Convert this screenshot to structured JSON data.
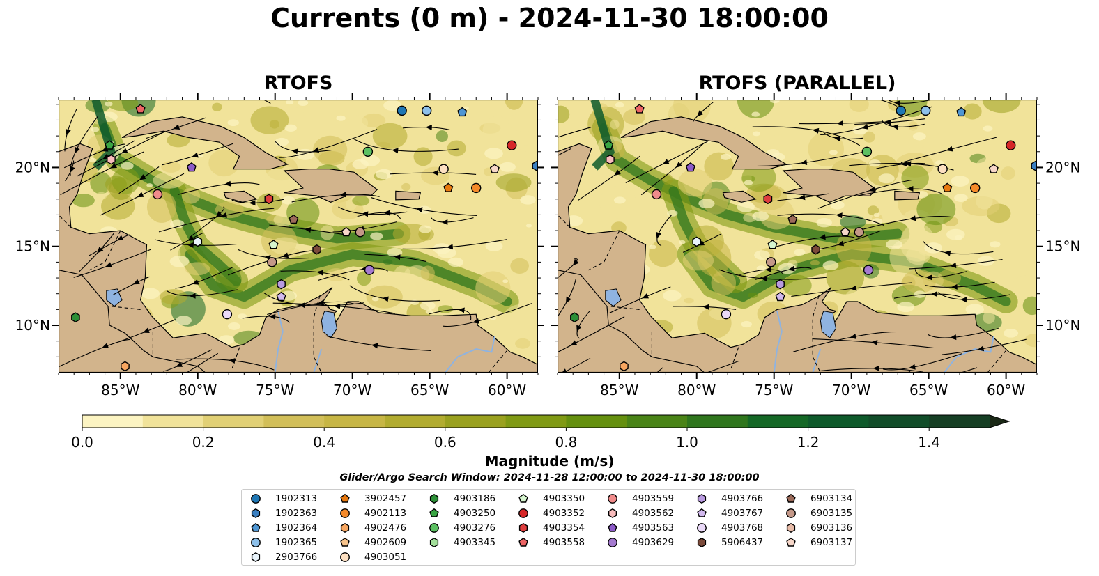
{
  "title": "Currents (0 m) - 2024-11-30 18:00:00",
  "panels": [
    {
      "title": "RTOFS"
    },
    {
      "title": "RTOFS (PARALLEL)"
    }
  ],
  "map": {
    "lon_range": [
      -89.0,
      -58.0
    ],
    "lat_range": [
      7.0,
      24.3
    ],
    "x_ticks": [
      "85°W",
      "80°W",
      "75°W",
      "70°W",
      "65°W",
      "60°W"
    ],
    "x_tick_values": [
      -85,
      -80,
      -75,
      -70,
      -65,
      -60
    ],
    "y_ticks": [
      "20°N",
      "15°N",
      "10°N"
    ],
    "y_tick_values": [
      20,
      15,
      10
    ],
    "land_color": "#d2b48c",
    "water_color": "#8fb3e0"
  },
  "colorbar": {
    "label": "Magnitude (m/s)",
    "ticks": [
      "0.0",
      "0.2",
      "0.4",
      "0.6",
      "0.8",
      "1.0",
      "1.2",
      "1.4"
    ],
    "tick_values": [
      0.0,
      0.2,
      0.4,
      0.6,
      0.8,
      1.0,
      1.2,
      1.4
    ],
    "range": [
      0.0,
      1.5
    ],
    "extend": "max",
    "colors": [
      "#fcf4c2",
      "#f1e39a",
      "#e1d075",
      "#d2bf59",
      "#c7b645",
      "#b2ac30",
      "#9aa11f",
      "#809a14",
      "#65900f",
      "#4a8417",
      "#2f761d",
      "#146826",
      "#0e5a2b",
      "#114d29",
      "#163f24",
      "#18321d",
      "#1a2816"
    ]
  },
  "search_window": "Glider/Argo Search Window: 2024-11-28 12:00:00 to 2024-11-30 18:00:00",
  "legend": [
    {
      "id": "1902313",
      "marker": "circle",
      "color": "#1f77b4"
    },
    {
      "id": "1902363",
      "marker": "hexagon",
      "color": "#3a7fc1"
    },
    {
      "id": "1902364",
      "marker": "pentagon",
      "color": "#4f96d3"
    },
    {
      "id": "1902365",
      "marker": "circle",
      "color": "#8dc0ea"
    },
    {
      "id": "2903766",
      "marker": "hexagon",
      "color": "#e8f3fb"
    },
    {
      "id": "3902457",
      "marker": "pentagon",
      "color": "#e8790f"
    },
    {
      "id": "4902113",
      "marker": "circle",
      "color": "#f58a2a"
    },
    {
      "id": "4902476",
      "marker": "hexagon",
      "color": "#f7a660"
    },
    {
      "id": "4902609",
      "marker": "pentagon",
      "color": "#f8c48c"
    },
    {
      "id": "4903051",
      "marker": "circle",
      "color": "#fde0c2"
    },
    {
      "id": "4903186",
      "marker": "hexagon",
      "color": "#2c8f37"
    },
    {
      "id": "4903250",
      "marker": "pentagon",
      "color": "#3aa543"
    },
    {
      "id": "4903276",
      "marker": "circle",
      "color": "#5cc062"
    },
    {
      "id": "4903345",
      "marker": "hexagon",
      "color": "#a3df9b"
    },
    {
      "id": "4903350",
      "marker": "pentagon",
      "color": "#d6f5cf"
    },
    {
      "id": "4903352",
      "marker": "circle",
      "color": "#d62728"
    },
    {
      "id": "4903354",
      "marker": "hexagon",
      "color": "#df3e3e"
    },
    {
      "id": "4903558",
      "marker": "pentagon",
      "color": "#ec6464"
    },
    {
      "id": "4903559",
      "marker": "circle",
      "color": "#f08b8b"
    },
    {
      "id": "4903562",
      "marker": "hexagon",
      "color": "#f8bcbc"
    },
    {
      "id": "4903563",
      "marker": "pentagon",
      "color": "#8c5ac8"
    },
    {
      "id": "4903629",
      "marker": "circle",
      "color": "#a57ad0"
    },
    {
      "id": "4903766",
      "marker": "hexagon",
      "color": "#b99be0"
    },
    {
      "id": "4903767",
      "marker": "pentagon",
      "color": "#d2b9ee"
    },
    {
      "id": "4903768",
      "marker": "circle",
      "color": "#ead9f8"
    },
    {
      "id": "5906437",
      "marker": "hexagon",
      "color": "#7b4a3a"
    },
    {
      "id": "6903134",
      "marker": "pentagon",
      "color": "#9c6b5a"
    },
    {
      "id": "6903135",
      "marker": "circle",
      "color": "#c49888"
    },
    {
      "id": "6903136",
      "marker": "hexagon",
      "color": "#e8bca9"
    },
    {
      "id": "6903137",
      "marker": "pentagon",
      "color": "#f7d7c9"
    }
  ],
  "platforms_left": [
    {
      "id": "1902313",
      "lon": -66.8,
      "lat": 23.6
    },
    {
      "id": "1902365",
      "lon": -65.2,
      "lat": 23.6
    },
    {
      "id": "1902364",
      "lon": -62.9,
      "lat": 23.5
    },
    {
      "id": "4903352",
      "lon": -59.7,
      "lat": 21.4
    },
    {
      "id": "1902363",
      "lon": -58.1,
      "lat": 20.1
    },
    {
      "id": "4903558",
      "lon": -83.7,
      "lat": 23.7
    },
    {
      "id": "4903250",
      "lon": -85.7,
      "lat": 21.4
    },
    {
      "id": "4903562",
      "lon": -85.6,
      "lat": 20.5
    },
    {
      "id": "4903563",
      "lon": -80.4,
      "lat": 20.0
    },
    {
      "id": "4903559",
      "lon": -82.6,
      "lat": 18.3
    },
    {
      "id": "4903276",
      "lon": -69.0,
      "lat": 21.0
    },
    {
      "id": "4903051",
      "lon": -64.1,
      "lat": 19.9
    },
    {
      "id": "6903137",
      "lon": -60.8,
      "lat": 19.9
    },
    {
      "id": "3902457",
      "lon": -63.8,
      "lat": 18.7
    },
    {
      "id": "4902113",
      "lon": -62.0,
      "lat": 18.7
    },
    {
      "id": "4903354",
      "lon": -75.4,
      "lat": 18.0
    },
    {
      "id": "6903134",
      "lon": -73.8,
      "lat": 16.7
    },
    {
      "id": "6903137",
      "lon": -70.4,
      "lat": 15.9
    },
    {
      "id": "6903135",
      "lon": -69.5,
      "lat": 15.9
    },
    {
      "id": "2903766",
      "lon": -80.0,
      "lat": 15.3
    },
    {
      "id": "4903350",
      "lon": -75.1,
      "lat": 15.1
    },
    {
      "id": "5906437",
      "lon": -72.3,
      "lat": 14.8
    },
    {
      "id": "6903135",
      "lon": -75.2,
      "lat": 14.0
    },
    {
      "id": "4903629",
      "lon": -68.9,
      "lat": 13.5
    },
    {
      "id": "4903766",
      "lon": -74.6,
      "lat": 12.6
    },
    {
      "id": "4903767",
      "lon": -74.6,
      "lat": 11.8
    },
    {
      "id": "4903768",
      "lon": -78.1,
      "lat": 10.7
    },
    {
      "id": "4903186",
      "lon": -87.9,
      "lat": 10.5
    },
    {
      "id": "4902476",
      "lon": -84.7,
      "lat": 7.4
    }
  ],
  "platforms_right": [
    {
      "id": "1902313",
      "lon": -66.8,
      "lat": 23.6
    },
    {
      "id": "1902365",
      "lon": -65.2,
      "lat": 23.6
    },
    {
      "id": "1902364",
      "lon": -62.9,
      "lat": 23.5
    },
    {
      "id": "4903352",
      "lon": -59.7,
      "lat": 21.4
    },
    {
      "id": "1902363",
      "lon": -58.1,
      "lat": 20.1
    },
    {
      "id": "4903558",
      "lon": -83.7,
      "lat": 23.7
    },
    {
      "id": "4903250",
      "lon": -85.7,
      "lat": 21.4
    },
    {
      "id": "4903562",
      "lon": -85.6,
      "lat": 20.5
    },
    {
      "id": "4903563",
      "lon": -80.4,
      "lat": 20.0
    },
    {
      "id": "4903559",
      "lon": -82.6,
      "lat": 18.3
    },
    {
      "id": "4903276",
      "lon": -69.0,
      "lat": 21.0
    },
    {
      "id": "4903051",
      "lon": -64.1,
      "lat": 19.9
    },
    {
      "id": "6903137",
      "lon": -60.8,
      "lat": 19.9
    },
    {
      "id": "3902457",
      "lon": -63.8,
      "lat": 18.7
    },
    {
      "id": "4902113",
      "lon": -62.0,
      "lat": 18.7
    },
    {
      "id": "4903354",
      "lon": -75.4,
      "lat": 18.0
    },
    {
      "id": "6903134",
      "lon": -73.8,
      "lat": 16.7
    },
    {
      "id": "6903137",
      "lon": -70.4,
      "lat": 15.9
    },
    {
      "id": "6903135",
      "lon": -69.5,
      "lat": 15.9
    },
    {
      "id": "2903766",
      "lon": -80.0,
      "lat": 15.3
    },
    {
      "id": "4903350",
      "lon": -75.1,
      "lat": 15.1
    },
    {
      "id": "5906437",
      "lon": -72.3,
      "lat": 14.8
    },
    {
      "id": "6903135",
      "lon": -75.2,
      "lat": 14.0
    },
    {
      "id": "4903629",
      "lon": -68.9,
      "lat": 13.5
    },
    {
      "id": "4903766",
      "lon": -74.6,
      "lat": 12.6
    },
    {
      "id": "4903767",
      "lon": -74.6,
      "lat": 11.8
    },
    {
      "id": "4903768",
      "lon": -78.1,
      "lat": 10.7
    },
    {
      "id": "4903186",
      "lon": -87.9,
      "lat": 10.5
    },
    {
      "id": "4902476",
      "lon": -84.7,
      "lat": 7.4
    }
  ]
}
